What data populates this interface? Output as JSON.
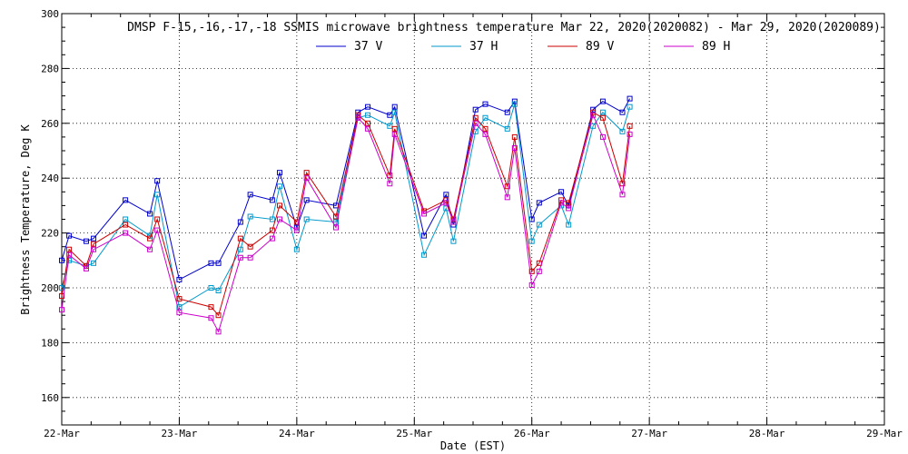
{
  "chart_data": {
    "type": "line",
    "title": "DMSP F-15,-16,-17,-18 SSMIS microwave brightness temperature Mar 22, 2020(2020082) - Mar 29, 2020(2020089)",
    "xlabel": "Date (EST)",
    "ylabel": "Brightness Temperature, Deg K",
    "xlim": [
      "2020-03-22",
      "2020-03-29"
    ],
    "ylim": [
      150,
      300
    ],
    "x_ticks": [
      "22-Mar",
      "23-Mar",
      "24-Mar",
      "25-Mar",
      "26-Mar",
      "27-Mar",
      "28-Mar",
      "29-Mar"
    ],
    "y_ticks": [
      160,
      180,
      200,
      220,
      240,
      260,
      280,
      300
    ],
    "grid": true,
    "legend_position": "top",
    "series": [
      {
        "name": "37 V",
        "color": "#0000cc",
        "x": [
          "2020-03-22 00:00",
          "2020-03-22 01:30",
          "2020-03-22 05:00",
          "2020-03-22 06:30",
          "2020-03-22 13:00",
          "2020-03-22 18:00",
          "2020-03-22 19:30",
          "2020-03-23 00:00",
          "2020-03-23 06:30",
          "2020-03-23 08:00",
          "2020-03-23 12:30",
          "2020-03-23 14:30",
          "2020-03-23 19:00",
          "2020-03-23 20:30",
          "2020-03-24 00:00",
          "2020-03-24 02:00",
          "2020-03-24 08:00",
          "2020-03-24 12:30",
          "2020-03-24 14:30",
          "2020-03-24 19:00",
          "2020-03-24 20:00",
          "2020-03-25 02:00",
          "2020-03-25 06:30",
          "2020-03-25 08:00",
          "2020-03-25 12:30",
          "2020-03-25 14:30",
          "2020-03-25 19:00",
          "2020-03-25 20:30",
          "2020-03-26 00:00",
          "2020-03-26 01:30",
          "2020-03-26 06:00",
          "2020-03-26 07:30",
          "2020-03-26 12:30",
          "2020-03-26 14:30",
          "2020-03-26 18:30",
          "2020-03-26 20:00"
        ],
        "values": [
          210,
          219,
          217,
          218,
          232,
          227,
          239,
          203,
          209,
          209,
          224,
          234,
          232,
          242,
          222,
          232,
          230,
          264,
          266,
          263,
          266,
          219,
          234,
          223,
          265,
          267,
          264,
          268,
          225,
          231,
          235,
          230,
          265,
          268,
          264,
          269
        ]
      },
      {
        "name": "37 H",
        "color": "#0099cc",
        "x": [
          "2020-03-22 00:00",
          "2020-03-22 01:30",
          "2020-03-22 05:00",
          "2020-03-22 06:30",
          "2020-03-22 13:00",
          "2020-03-22 18:00",
          "2020-03-22 19:30",
          "2020-03-23 00:00",
          "2020-03-23 06:30",
          "2020-03-23 08:00",
          "2020-03-23 12:30",
          "2020-03-23 14:30",
          "2020-03-23 19:00",
          "2020-03-23 20:30",
          "2020-03-24 00:00",
          "2020-03-24 02:00",
          "2020-03-24 08:00",
          "2020-03-24 12:30",
          "2020-03-24 14:30",
          "2020-03-24 19:00",
          "2020-03-24 20:00",
          "2020-03-25 02:00",
          "2020-03-25 06:30",
          "2020-03-25 08:00",
          "2020-03-25 12:30",
          "2020-03-25 14:30",
          "2020-03-25 19:00",
          "2020-03-25 20:30",
          "2020-03-26 00:00",
          "2020-03-26 01:30",
          "2020-03-26 06:00",
          "2020-03-26 07:30",
          "2020-03-26 12:30",
          "2020-03-26 14:30",
          "2020-03-26 18:30",
          "2020-03-26 20:00"
        ],
        "values": [
          200,
          210,
          208,
          209,
          225,
          219,
          234,
          193,
          200,
          199,
          214,
          226,
          225,
          237,
          214,
          225,
          224,
          262,
          263,
          259,
          264,
          212,
          229,
          217,
          257,
          262,
          258,
          267,
          217,
          223,
          230,
          223,
          259,
          264,
          257,
          266
        ]
      },
      {
        "name": "89 V",
        "color": "#cc0000",
        "x": [
          "2020-03-22 00:00",
          "2020-03-22 01:30",
          "2020-03-22 05:00",
          "2020-03-22 06:30",
          "2020-03-22 13:00",
          "2020-03-22 18:00",
          "2020-03-22 19:30",
          "2020-03-23 00:00",
          "2020-03-23 06:30",
          "2020-03-23 08:00",
          "2020-03-23 12:30",
          "2020-03-23 14:30",
          "2020-03-23 19:00",
          "2020-03-23 20:30",
          "2020-03-24 00:00",
          "2020-03-24 02:00",
          "2020-03-24 08:00",
          "2020-03-24 12:30",
          "2020-03-24 14:30",
          "2020-03-24 19:00",
          "2020-03-24 20:00",
          "2020-03-25 02:00",
          "2020-03-25 06:30",
          "2020-03-25 08:00",
          "2020-03-25 12:30",
          "2020-03-25 14:30",
          "2020-03-25 19:00",
          "2020-03-25 20:30",
          "2020-03-26 00:00",
          "2020-03-26 01:30",
          "2020-03-26 06:00",
          "2020-03-26 07:30",
          "2020-03-26 12:30",
          "2020-03-26 14:30",
          "2020-03-26 18:30",
          "2020-03-26 20:00"
        ],
        "values": [
          197,
          214,
          208,
          216,
          223,
          218,
          225,
          196,
          193,
          190,
          218,
          215,
          221,
          230,
          224,
          242,
          226,
          263,
          260,
          241,
          258,
          228,
          232,
          225,
          262,
          258,
          237,
          255,
          206,
          209,
          232,
          231,
          264,
          262,
          238,
          259
        ]
      },
      {
        "name": "89 H",
        "color": "#cc00cc",
        "x": [
          "2020-03-22 00:00",
          "2020-03-22 01:30",
          "2020-03-22 05:00",
          "2020-03-22 06:30",
          "2020-03-22 13:00",
          "2020-03-22 18:00",
          "2020-03-22 19:30",
          "2020-03-23 00:00",
          "2020-03-23 06:30",
          "2020-03-23 08:00",
          "2020-03-23 12:30",
          "2020-03-23 14:30",
          "2020-03-23 19:00",
          "2020-03-23 20:30",
          "2020-03-24 00:00",
          "2020-03-24 02:00",
          "2020-03-24 08:00",
          "2020-03-24 12:30",
          "2020-03-24 14:30",
          "2020-03-24 19:00",
          "2020-03-24 20:00",
          "2020-03-25 02:00",
          "2020-03-25 06:30",
          "2020-03-25 08:00",
          "2020-03-25 12:30",
          "2020-03-25 14:30",
          "2020-03-25 19:00",
          "2020-03-25 20:30",
          "2020-03-26 00:00",
          "2020-03-26 01:30",
          "2020-03-26 06:00",
          "2020-03-26 07:30",
          "2020-03-26 12:30",
          "2020-03-26 14:30",
          "2020-03-26 18:30",
          "2020-03-26 20:00"
        ],
        "values": [
          192,
          212,
          207,
          214,
          220,
          214,
          221,
          191,
          189,
          184,
          211,
          211,
          218,
          225,
          221,
          240,
          222,
          262,
          258,
          238,
          256,
          227,
          231,
          224,
          260,
          256,
          233,
          251,
          201,
          206,
          231,
          229,
          263,
          255,
          234,
          256
        ]
      }
    ]
  }
}
